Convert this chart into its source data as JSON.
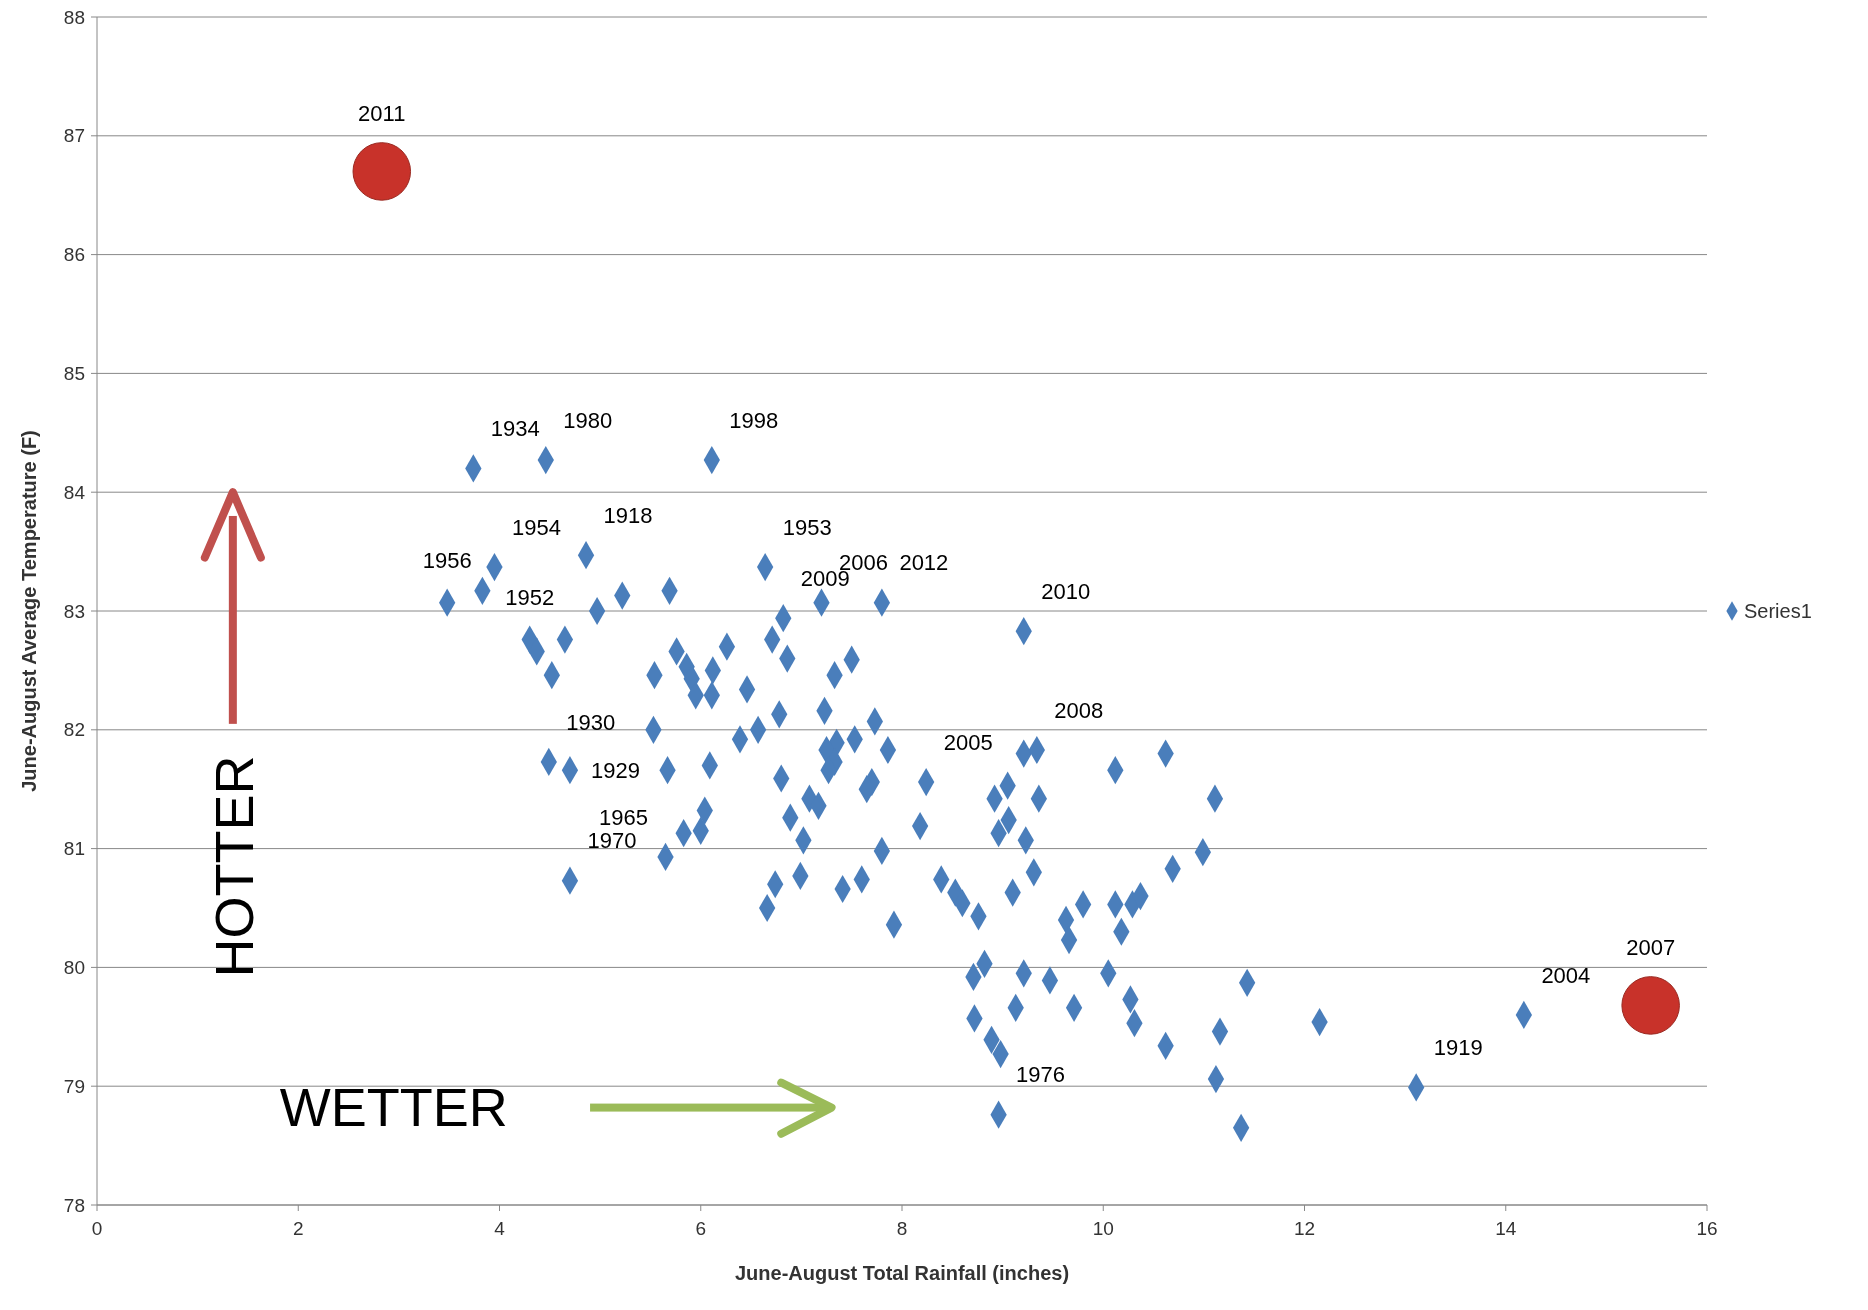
{
  "chart_data": {
    "type": "scatter",
    "xlabel": "June-August Total Rainfall (inches)",
    "ylabel": "June-August Average Temperature (F)",
    "xlim": [
      0,
      16
    ],
    "xticks": [
      0,
      2,
      4,
      6,
      8,
      10,
      12,
      14,
      16
    ],
    "ylim": [
      78,
      88
    ],
    "yticks": [
      78,
      79,
      80,
      81,
      82,
      83,
      84,
      85,
      86,
      87,
      88
    ],
    "grid": "y",
    "legend": "right",
    "series": [
      {
        "name": "Series1",
        "color": "#4a7ebb",
        "marker": "diamond",
        "x": [
          3.74,
          4.46,
          6.11,
          3.48,
          3.83,
          3.95,
          4.3,
          4.37,
          4.65,
          4.52,
          4.86,
          4.97,
          5.22,
          5.69,
          6.64,
          6.82,
          7.2,
          7.8,
          9.21,
          5.54,
          5.76,
          5.86,
          5.91,
          5.95,
          6.12,
          6.11,
          6.26,
          6.46,
          6.71,
          6.86,
          6.78,
          6.57,
          6.39,
          5.53,
          7.23,
          7.33,
          7.5,
          7.73,
          7.53,
          7.86,
          7.35,
          7.25,
          7.33,
          7.27,
          4.49,
          4.7,
          5.67,
          6.09,
          6.8,
          6.04,
          6.89,
          7.08,
          7.17,
          7.7,
          7.65,
          8.24,
          5.83,
          6.0,
          7.02,
          7.8,
          8.18,
          5.65,
          4.7,
          6.74,
          6.99,
          6.66,
          7.41,
          7.6,
          7.92,
          8.39,
          8.53,
          8.6,
          8.76,
          8.92,
          9.05,
          9.21,
          9.34,
          9.36,
          9.06,
          8.96,
          9.23,
          9.31,
          9.1,
          10.12,
          10.62,
          11.11,
          10.99,
          10.69,
          9.63,
          9.8,
          9.66,
          10.12,
          10.18,
          10.29,
          10.37,
          8.82,
          8.71,
          9.21,
          9.47,
          10.05,
          10.27,
          10.31,
          9.71,
          9.13,
          8.72,
          8.89,
          8.98,
          10.62,
          11.16,
          11.43,
          12.15,
          14.18,
          13.11,
          11.12,
          11.37,
          8.96
        ],
        "values": [
          84.2,
          84.27,
          84.27,
          83.07,
          83.17,
          83.37,
          82.76,
          82.66,
          82.76,
          82.46,
          83.47,
          83.0,
          83.13,
          83.17,
          83.37,
          82.94,
          83.07,
          83.07,
          82.83,
          82.46,
          82.66,
          82.53,
          82.43,
          82.29,
          82.5,
          82.29,
          82.7,
          82.34,
          82.76,
          82.6,
          82.13,
          82.0,
          81.92,
          82.0,
          82.16,
          82.46,
          82.59,
          82.07,
          81.92,
          81.83,
          81.89,
          81.83,
          81.73,
          81.66,
          81.73,
          81.66,
          81.66,
          81.7,
          81.59,
          81.32,
          81.26,
          81.42,
          81.36,
          81.56,
          81.5,
          81.56,
          81.13,
          81.15,
          81.07,
          80.98,
          81.19,
          80.93,
          80.73,
          80.7,
          80.77,
          80.5,
          80.66,
          80.74,
          80.36,
          80.74,
          80.63,
          80.54,
          80.43,
          81.42,
          81.53,
          81.8,
          81.83,
          81.42,
          81.24,
          81.13,
          81.07,
          80.8,
          80.63,
          81.66,
          81.8,
          81.42,
          80.97,
          80.83,
          80.4,
          80.53,
          80.23,
          80.53,
          80.3,
          80.53,
          80.6,
          80.03,
          79.92,
          79.95,
          79.89,
          79.95,
          79.73,
          79.53,
          79.66,
          79.66,
          79.57,
          79.39,
          79.27,
          79.34,
          79.46,
          79.87,
          79.54,
          79.6,
          78.99,
          79.06,
          78.65,
          78.76
        ]
      },
      {
        "color": "#c8322a",
        "marker": "circle",
        "x": [
          2.83,
          15.44
        ],
        "values": [
          86.7,
          79.68
        ]
      }
    ],
    "annotations": [
      {
        "text": "2011",
        "x": 2.83,
        "y": 86.7
      },
      {
        "text": "1934",
        "x": 3.74,
        "y": 84.2
      },
      {
        "text": "1980",
        "x": 4.46,
        "y": 84.27
      },
      {
        "text": "1998",
        "x": 6.11,
        "y": 84.27
      },
      {
        "text": "1954",
        "x": 3.95,
        "y": 83.37
      },
      {
        "text": "1918",
        "x": 4.86,
        "y": 83.47
      },
      {
        "text": "1953",
        "x": 6.64,
        "y": 83.37
      },
      {
        "text": "2012",
        "x": 7.8,
        "y": 83.07
      },
      {
        "text": "1956",
        "x": 3.48,
        "y": 83.07
      },
      {
        "text": "1952",
        "x": 4.3,
        "y": 82.76
      },
      {
        "text": "2009",
        "x": 6.82,
        "y": 82.94
      },
      {
        "text": "2006",
        "x": 7.2,
        "y": 83.07
      },
      {
        "text": "2010",
        "x": 9.21,
        "y": 82.83
      },
      {
        "text": "2008",
        "x": 9.34,
        "y": 81.83
      },
      {
        "text": "1930",
        "x": 4.49,
        "y": 81.73
      },
      {
        "text": "1929",
        "x": 5.67,
        "y": 81.66
      },
      {
        "text": "2005",
        "x": 8.24,
        "y": 81.56
      },
      {
        "text": "1965",
        "x": 5.65,
        "y": 80.93
      },
      {
        "text": "1970",
        "x": 4.7,
        "y": 80.73
      },
      {
        "text": "1976",
        "x": 8.96,
        "y": 78.76
      },
      {
        "text": "2004",
        "x": 14.18,
        "y": 79.6
      },
      {
        "text": "1919",
        "x": 13.11,
        "y": 78.99
      },
      {
        "text": "2007",
        "x": 15.44,
        "y": 79.68
      },
      "HOTTER",
      "WETTER"
    ]
  }
}
